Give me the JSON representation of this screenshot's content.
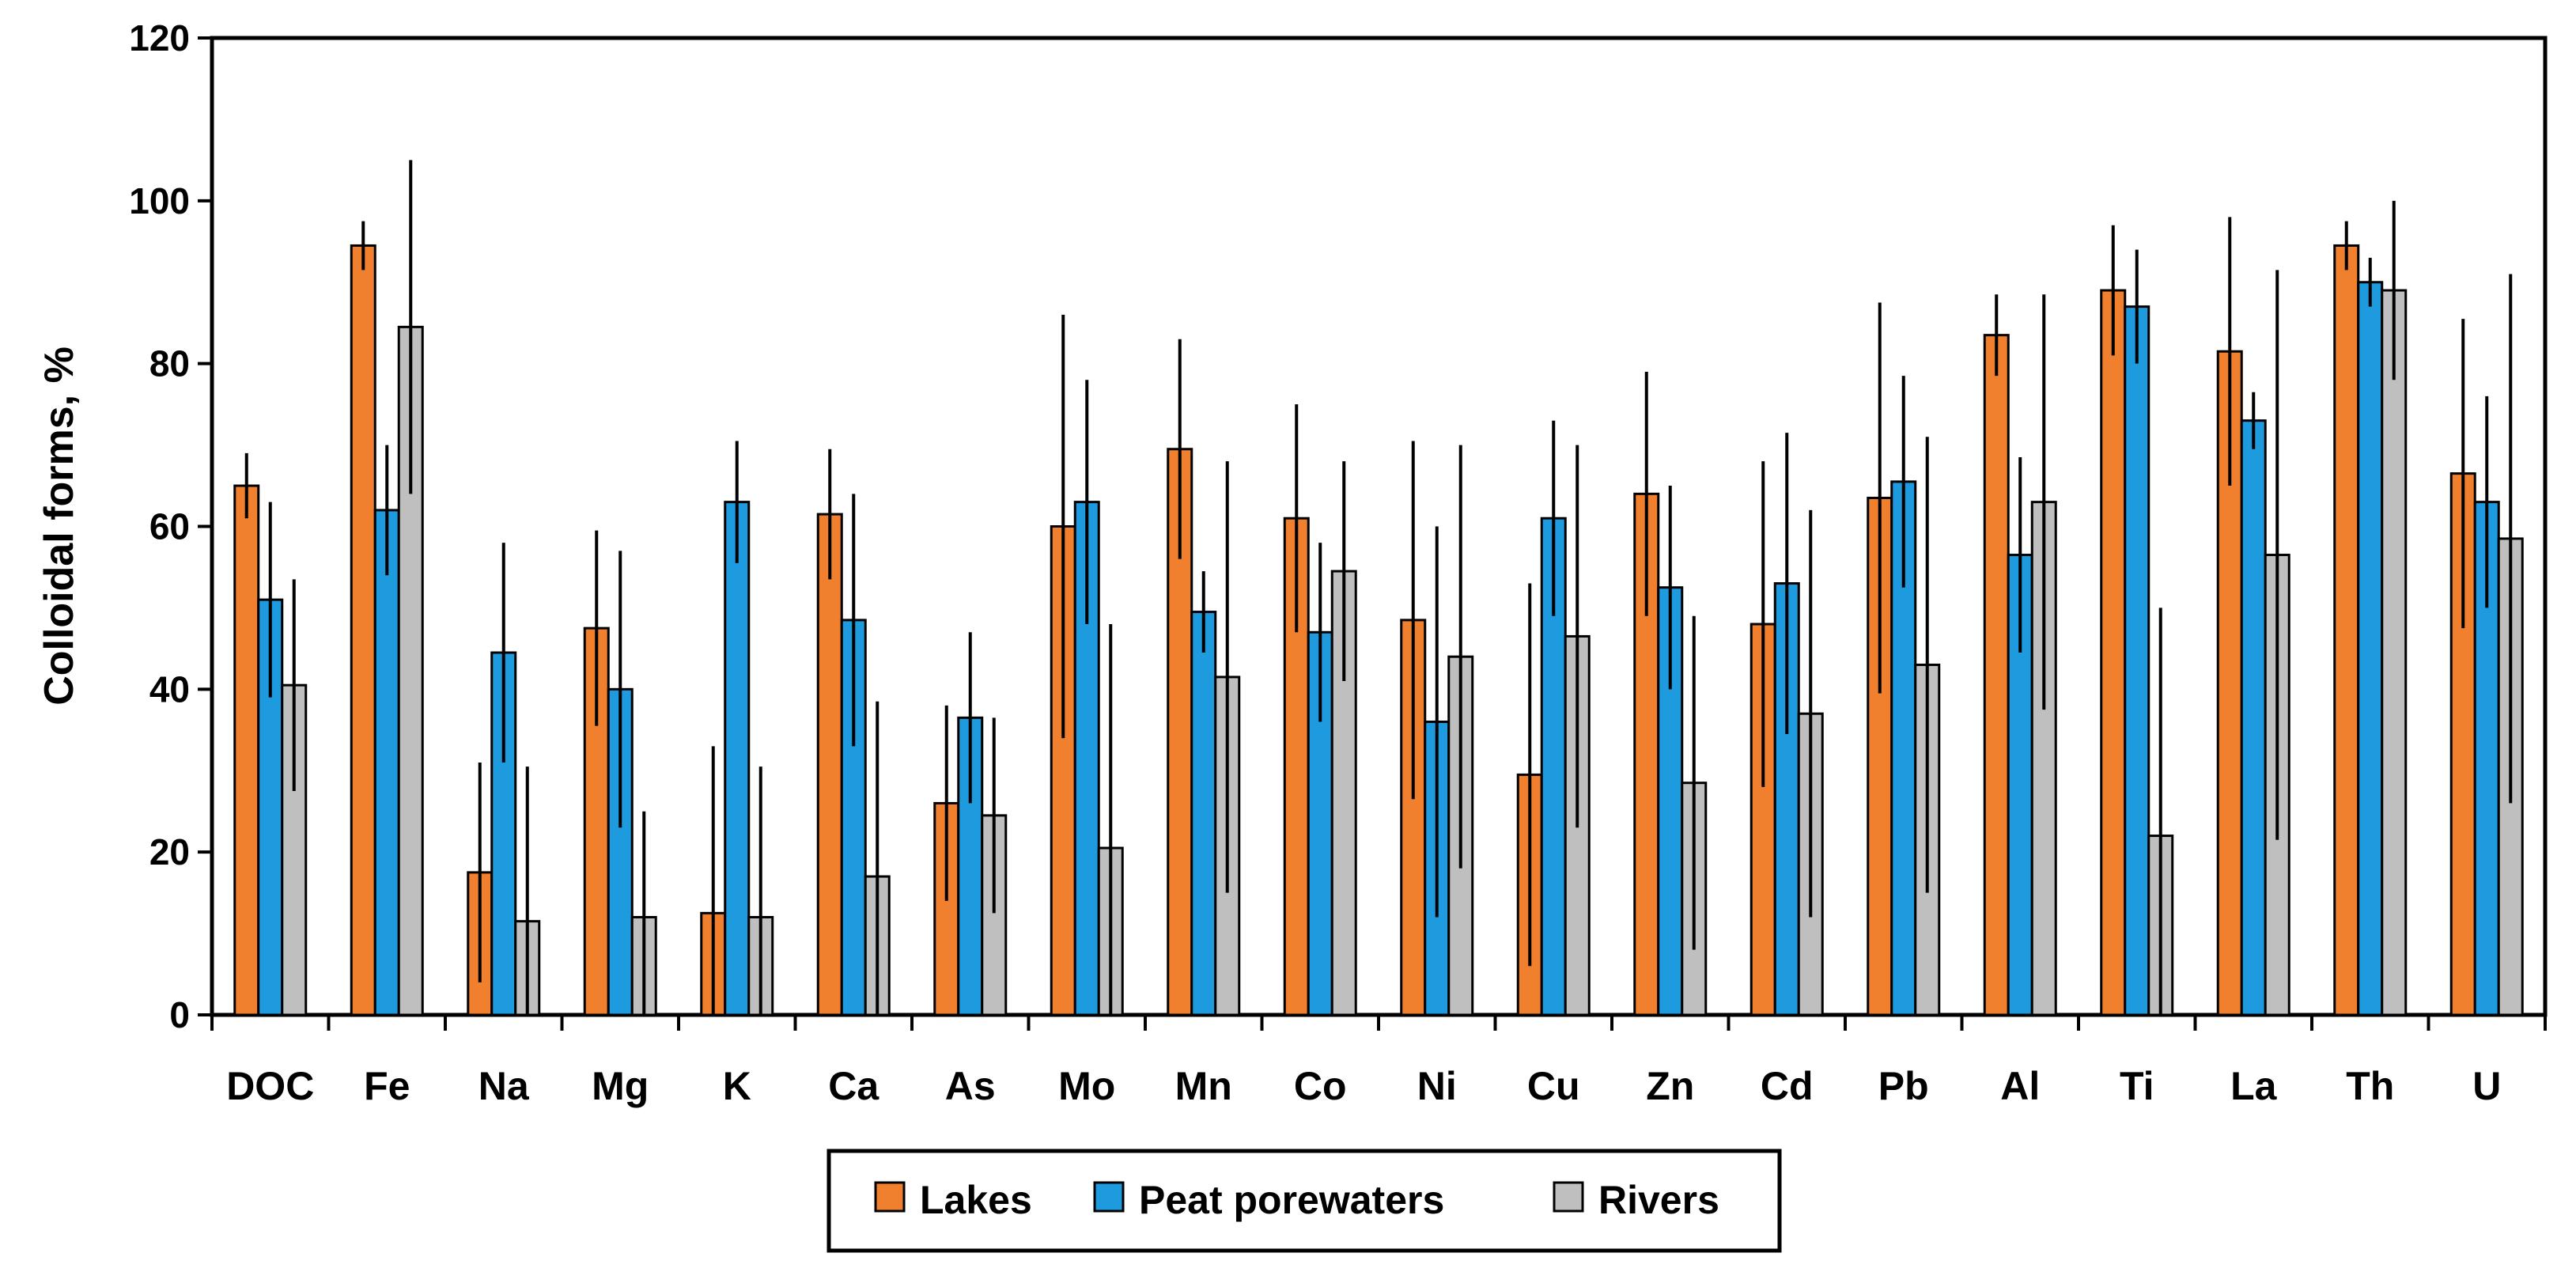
{
  "chart_data": {
    "type": "bar",
    "title": "",
    "xlabel": "",
    "ylabel": "Colloidal forms, %",
    "ylim": [
      0,
      120
    ],
    "yticks": [
      "0",
      "20",
      "40",
      "60",
      "80",
      "100",
      "120"
    ],
    "grid": false,
    "legend_position": "bottom-center",
    "categories": [
      "DOC",
      "Fe",
      "Na",
      "Mg",
      "K",
      "Ca",
      "As",
      "Mo",
      "Mn",
      "Co",
      "Ni",
      "Cu",
      "Zn",
      "Cd",
      "Pb",
      "Al",
      "Ti",
      "La",
      "Th",
      "U"
    ],
    "series": [
      {
        "name": "Lakes",
        "color": "#F07F2E",
        "values": [
          65,
          94.5,
          17.5,
          47.5,
          12.5,
          61.5,
          26,
          60,
          69.5,
          61,
          48.5,
          29.5,
          64,
          48,
          63.5,
          83.5,
          89,
          81.5,
          94.5,
          66.5
        ],
        "errors": [
          4,
          3,
          13.5,
          12,
          20.5,
          8,
          12,
          26,
          13.5,
          14,
          22,
          23.5,
          15,
          20,
          24,
          5,
          8,
          16.5,
          3,
          19
        ]
      },
      {
        "name": "Peat porewaters",
        "color": "#1E9ADF",
        "values": [
          51,
          62,
          44.5,
          40,
          63,
          48.5,
          36.5,
          63,
          49.5,
          47,
          36,
          61,
          52.5,
          53,
          65.5,
          56.5,
          87,
          73,
          90,
          63
        ],
        "errors": [
          12,
          8,
          13.5,
          17,
          7.5,
          15.5,
          10.5,
          15,
          5,
          11,
          24,
          12,
          12.5,
          18.5,
          13,
          12,
          7,
          3.5,
          3,
          13
        ]
      },
      {
        "name": "Rivers",
        "color": "#BFBFBF",
        "values": [
          40.5,
          84.5,
          11.5,
          12,
          12,
          17,
          24.5,
          20.5,
          41.5,
          54.5,
          44,
          46.5,
          28.5,
          37,
          43,
          63,
          22,
          56.5,
          89,
          58.5
        ],
        "errors": [
          13,
          20.5,
          19,
          13,
          18.5,
          21.5,
          12,
          27.5,
          26.5,
          13.5,
          26,
          23.5,
          20.5,
          25,
          28,
          25.5,
          28,
          35,
          11,
          32.5
        ]
      }
    ]
  }
}
